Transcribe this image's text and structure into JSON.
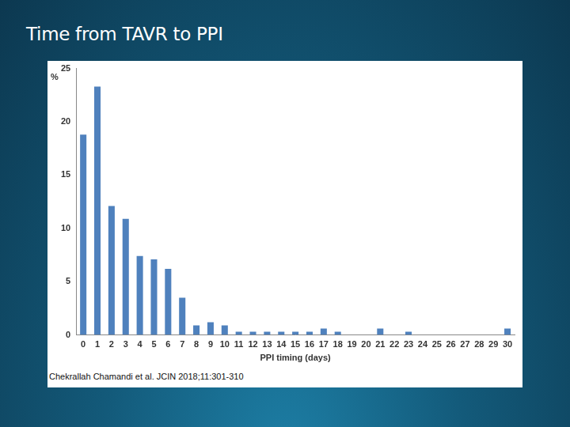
{
  "chart_data": {
    "type": "bar",
    "title": "Time from TAVR to PPI",
    "y_label": "%",
    "x_label": "PPI timing (days)",
    "annotation": "Chekrallah Chamandi et al. JCIN 2018;11:301-310",
    "categories": [
      "0",
      "1",
      "2",
      "3",
      "4",
      "5",
      "6",
      "7",
      "8",
      "9",
      "10",
      "11",
      "12",
      "13",
      "14",
      "15",
      "16",
      "17",
      "18",
      "19",
      "20",
      "21",
      "22",
      "23",
      "24",
      "25",
      "26",
      "27",
      "28",
      "29",
      "30"
    ],
    "values": [
      18.8,
      23.3,
      12.1,
      10.9,
      7.4,
      7.1,
      6.2,
      3.5,
      0.9,
      1.2,
      0.9,
      0.3,
      0.3,
      0.3,
      0.3,
      0.3,
      0.3,
      0.6,
      0.3,
      0,
      0,
      0.6,
      0,
      0.3,
      0,
      0,
      0,
      0,
      0,
      0,
      0.6
    ],
    "color": "#4f81bd",
    "ylim": [
      0,
      25
    ],
    "yticks": [
      0,
      5,
      10,
      15,
      20,
      25
    ],
    "grid": false
  }
}
